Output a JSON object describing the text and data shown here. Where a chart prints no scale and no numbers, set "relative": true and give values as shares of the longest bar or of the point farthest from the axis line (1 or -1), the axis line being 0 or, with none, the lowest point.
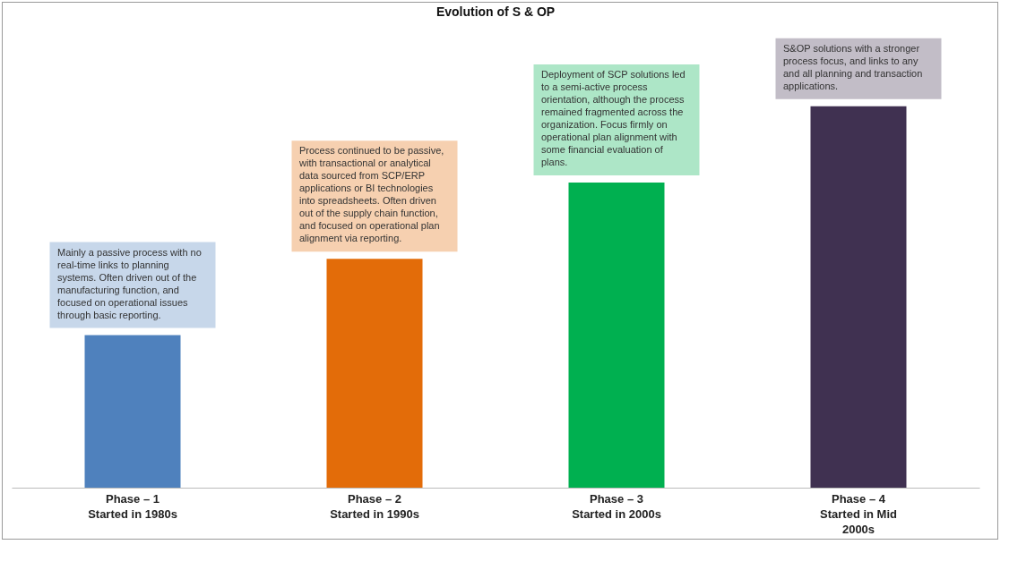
{
  "chart_data": {
    "type": "bar",
    "title": "Evolution of S & OP",
    "relative": true,
    "categories": [
      "Phase – 1\nStarted in 1980s",
      "Phase – 2\nStarted in 1990s",
      "Phase – 3\nStarted in 2000s",
      "Phase – 4\nStarted in Mid\n2000s"
    ],
    "values": [
      0.4,
      0.6,
      0.8,
      1.0
    ],
    "colors": [
      "#4f81bd",
      "#e36c09",
      "#00b050",
      "#403151"
    ],
    "annotations": [
      "Mainly a passive process with no real-time links to planning systems. Often driven out of the manufacturing function, and focused on operational issues through basic reporting.",
      "Process continued to be passive, with transactional or analytical data sourced from SCP/ERP applications or BI technologies into spreadsheets. Often driven out of the supply chain function, and focused on operational plan alignment via reporting.",
      "Deployment of SCP solutions led to a semi-active process orientation, although the process remained fragmented across the organization. Focus firmly on operational plan alignment with some financial evaluation of plans.",
      "S&OP solutions with a stronger process focus, and links to any and all planning and transaction applications."
    ]
  }
}
